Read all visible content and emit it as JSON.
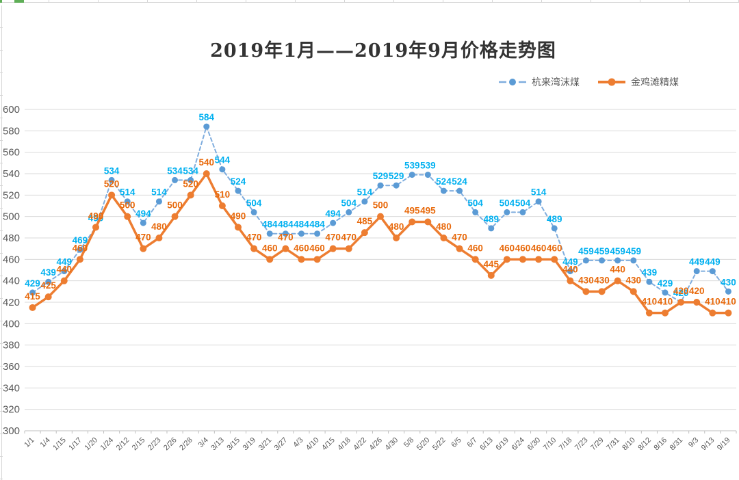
{
  "chart_data": {
    "type": "line",
    "title": "2019年1月——2019年9月价格走势图",
    "categories": [
      "1/1",
      "1/4",
      "1/15",
      "1/17",
      "1/20",
      "1/24",
      "2/12",
      "2/15",
      "2/23",
      "2/26",
      "2/28",
      "3/4",
      "3/13",
      "3/15",
      "3/19",
      "3/21",
      "3/27",
      "4/3",
      "4/10",
      "4/15",
      "4/18",
      "4/22",
      "4/26",
      "4/30",
      "5/8",
      "5/20",
      "5/22",
      "6/5",
      "6/7",
      "6/13",
      "6/19",
      "6/24",
      "6/30",
      "7/10",
      "7/18",
      "7/23",
      "7/29",
      "7/31",
      "8/10",
      "8/12",
      "8/16",
      "8/31",
      "9/3",
      "9/13",
      "9/19"
    ],
    "series": [
      {
        "name": "杭来湾沫煤",
        "line_style": "dashed",
        "line_color": "#7fadde",
        "marker_color": "#5b9bd5",
        "label_color": "#00b0f0",
        "values": [
          429,
          439,
          449,
          469,
          490,
          534,
          514,
          494,
          514,
          534,
          534,
          584,
          544,
          524,
          504,
          484,
          484,
          484,
          484,
          494,
          504,
          514,
          529,
          529,
          539,
          539,
          524,
          524,
          504,
          489,
          504,
          504,
          514,
          489,
          449,
          459,
          459,
          459,
          459,
          439,
          429,
          420,
          449,
          449,
          430
        ]
      },
      {
        "name": "金鸡滩精煤",
        "line_style": "solid",
        "line_color": "#ed7d31",
        "marker_color": "#ed7d31",
        "label_color": "#e8690b",
        "values": [
          415,
          425,
          440,
          460,
          490,
          520,
          500,
          470,
          480,
          500,
          520,
          540,
          510,
          490,
          470,
          460,
          470,
          460,
          460,
          470,
          470,
          485,
          500,
          480,
          495,
          495,
          480,
          470,
          460,
          445,
          460,
          460,
          460,
          460,
          440,
          430,
          430,
          440,
          430,
          410,
          410,
          420,
          420,
          410,
          410
        ]
      }
    ],
    "y_axis": {
      "min": 300,
      "max": 600,
      "step": 20,
      "tick_labels": [
        "600",
        "580",
        "560",
        "540",
        "520",
        "500",
        "480",
        "460",
        "440",
        "420",
        "400",
        "380",
        "360",
        "340",
        "320",
        "300"
      ]
    },
    "xlabel": "",
    "ylabel": "",
    "grid": true,
    "legend_position": "top-right",
    "axis_text_color": "#595959",
    "gridline_color": "#d9d9d9",
    "axis_line_color": "#bfbfbf"
  }
}
